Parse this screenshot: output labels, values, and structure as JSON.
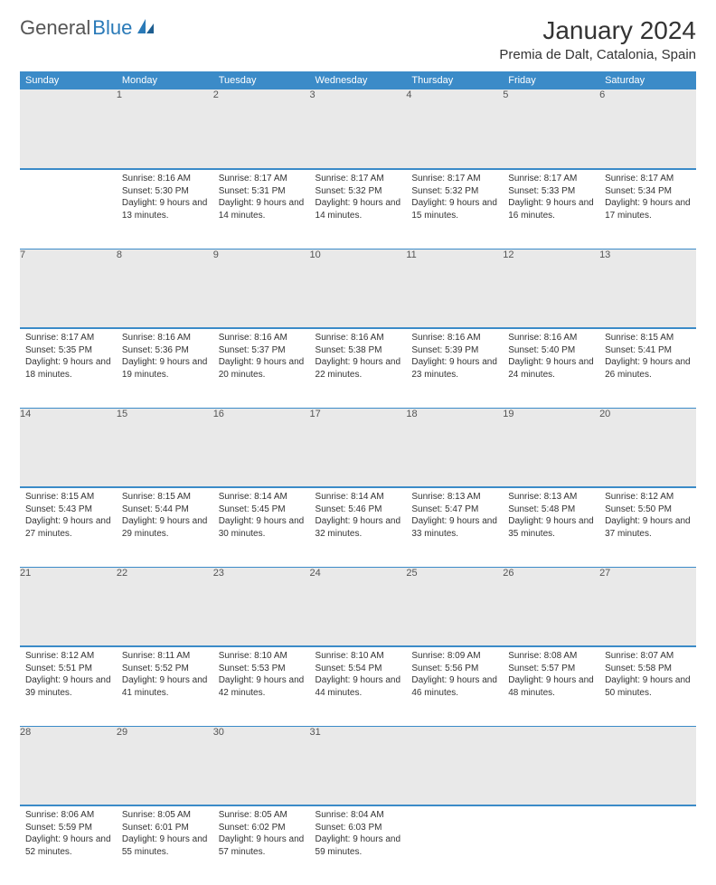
{
  "logo": {
    "text_gray": "General",
    "text_blue": "Blue"
  },
  "title": "January 2024",
  "location": "Premia de Dalt, Catalonia, Spain",
  "colors": {
    "header_bg": "#3b8bc8",
    "header_fg": "#ffffff",
    "daynum_bg": "#e9e9e9",
    "row_divider": "#3b8bc8",
    "text": "#333333",
    "logo_gray": "#555555",
    "logo_blue": "#2a7ab8"
  },
  "weekdays": [
    "Sunday",
    "Monday",
    "Tuesday",
    "Wednesday",
    "Thursday",
    "Friday",
    "Saturday"
  ],
  "weeks": [
    [
      null,
      {
        "n": "1",
        "sunrise": "8:16 AM",
        "sunset": "5:30 PM",
        "dl": "9 hours and 13 minutes."
      },
      {
        "n": "2",
        "sunrise": "8:17 AM",
        "sunset": "5:31 PM",
        "dl": "9 hours and 14 minutes."
      },
      {
        "n": "3",
        "sunrise": "8:17 AM",
        "sunset": "5:32 PM",
        "dl": "9 hours and 14 minutes."
      },
      {
        "n": "4",
        "sunrise": "8:17 AM",
        "sunset": "5:32 PM",
        "dl": "9 hours and 15 minutes."
      },
      {
        "n": "5",
        "sunrise": "8:17 AM",
        "sunset": "5:33 PM",
        "dl": "9 hours and 16 minutes."
      },
      {
        "n": "6",
        "sunrise": "8:17 AM",
        "sunset": "5:34 PM",
        "dl": "9 hours and 17 minutes."
      }
    ],
    [
      {
        "n": "7",
        "sunrise": "8:17 AM",
        "sunset": "5:35 PM",
        "dl": "9 hours and 18 minutes."
      },
      {
        "n": "8",
        "sunrise": "8:16 AM",
        "sunset": "5:36 PM",
        "dl": "9 hours and 19 minutes."
      },
      {
        "n": "9",
        "sunrise": "8:16 AM",
        "sunset": "5:37 PM",
        "dl": "9 hours and 20 minutes."
      },
      {
        "n": "10",
        "sunrise": "8:16 AM",
        "sunset": "5:38 PM",
        "dl": "9 hours and 22 minutes."
      },
      {
        "n": "11",
        "sunrise": "8:16 AM",
        "sunset": "5:39 PM",
        "dl": "9 hours and 23 minutes."
      },
      {
        "n": "12",
        "sunrise": "8:16 AM",
        "sunset": "5:40 PM",
        "dl": "9 hours and 24 minutes."
      },
      {
        "n": "13",
        "sunrise": "8:15 AM",
        "sunset": "5:41 PM",
        "dl": "9 hours and 26 minutes."
      }
    ],
    [
      {
        "n": "14",
        "sunrise": "8:15 AM",
        "sunset": "5:43 PM",
        "dl": "9 hours and 27 minutes."
      },
      {
        "n": "15",
        "sunrise": "8:15 AM",
        "sunset": "5:44 PM",
        "dl": "9 hours and 29 minutes."
      },
      {
        "n": "16",
        "sunrise": "8:14 AM",
        "sunset": "5:45 PM",
        "dl": "9 hours and 30 minutes."
      },
      {
        "n": "17",
        "sunrise": "8:14 AM",
        "sunset": "5:46 PM",
        "dl": "9 hours and 32 minutes."
      },
      {
        "n": "18",
        "sunrise": "8:13 AM",
        "sunset": "5:47 PM",
        "dl": "9 hours and 33 minutes."
      },
      {
        "n": "19",
        "sunrise": "8:13 AM",
        "sunset": "5:48 PM",
        "dl": "9 hours and 35 minutes."
      },
      {
        "n": "20",
        "sunrise": "8:12 AM",
        "sunset": "5:50 PM",
        "dl": "9 hours and 37 minutes."
      }
    ],
    [
      {
        "n": "21",
        "sunrise": "8:12 AM",
        "sunset": "5:51 PM",
        "dl": "9 hours and 39 minutes."
      },
      {
        "n": "22",
        "sunrise": "8:11 AM",
        "sunset": "5:52 PM",
        "dl": "9 hours and 41 minutes."
      },
      {
        "n": "23",
        "sunrise": "8:10 AM",
        "sunset": "5:53 PM",
        "dl": "9 hours and 42 minutes."
      },
      {
        "n": "24",
        "sunrise": "8:10 AM",
        "sunset": "5:54 PM",
        "dl": "9 hours and 44 minutes."
      },
      {
        "n": "25",
        "sunrise": "8:09 AM",
        "sunset": "5:56 PM",
        "dl": "9 hours and 46 minutes."
      },
      {
        "n": "26",
        "sunrise": "8:08 AM",
        "sunset": "5:57 PM",
        "dl": "9 hours and 48 minutes."
      },
      {
        "n": "27",
        "sunrise": "8:07 AM",
        "sunset": "5:58 PM",
        "dl": "9 hours and 50 minutes."
      }
    ],
    [
      {
        "n": "28",
        "sunrise": "8:06 AM",
        "sunset": "5:59 PM",
        "dl": "9 hours and 52 minutes."
      },
      {
        "n": "29",
        "sunrise": "8:05 AM",
        "sunset": "6:01 PM",
        "dl": "9 hours and 55 minutes."
      },
      {
        "n": "30",
        "sunrise": "8:05 AM",
        "sunset": "6:02 PM",
        "dl": "9 hours and 57 minutes."
      },
      {
        "n": "31",
        "sunrise": "8:04 AM",
        "sunset": "6:03 PM",
        "dl": "9 hours and 59 minutes."
      },
      null,
      null,
      null
    ]
  ],
  "labels": {
    "sunrise": "Sunrise:",
    "sunset": "Sunset:",
    "daylight": "Daylight:"
  }
}
